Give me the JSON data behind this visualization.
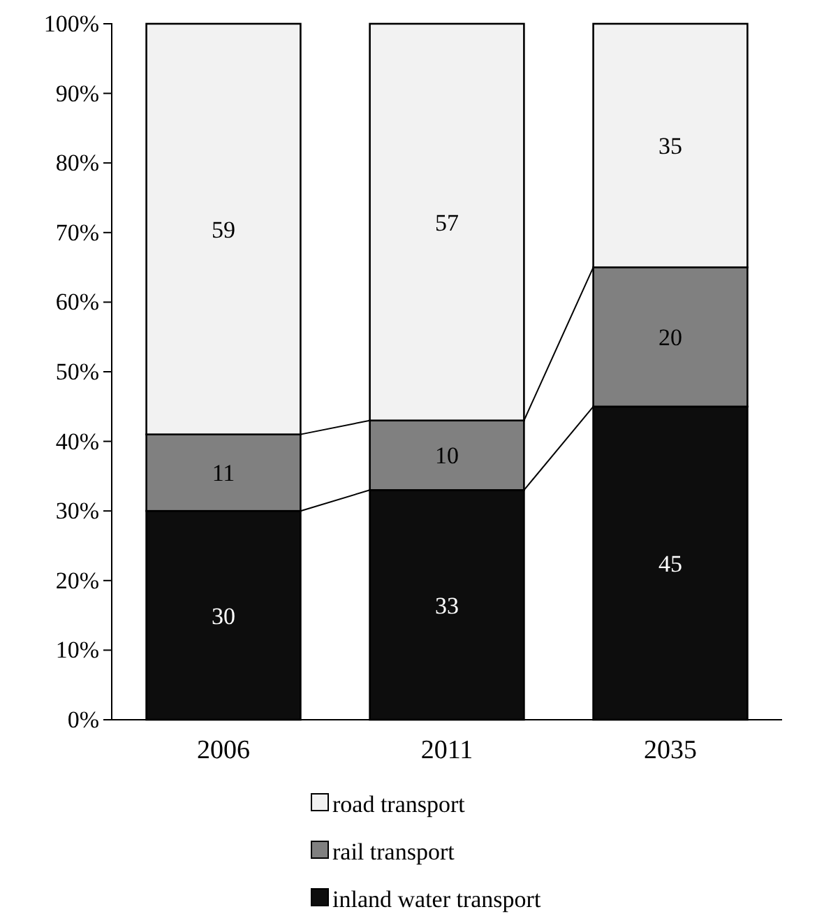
{
  "chart_data": {
    "type": "bar",
    "stacked": true,
    "categories": [
      "2006",
      "2011",
      "2035"
    ],
    "series": [
      {
        "name": "inland water transport",
        "color": "#0d0d0d",
        "values": [
          30,
          33,
          45
        ]
      },
      {
        "name": "rail transport",
        "color": "#808080",
        "values": [
          11,
          10,
          20
        ]
      },
      {
        "name": "road transport",
        "color": "#f2f2f2",
        "values": [
          59,
          57,
          35
        ]
      }
    ],
    "ylim": [
      0,
      100
    ],
    "yticks": [
      {
        "value": 0,
        "label": "0%"
      },
      {
        "value": 10,
        "label": "10%"
      },
      {
        "value": 20,
        "label": "20%"
      },
      {
        "value": 30,
        "label": "30%"
      },
      {
        "value": 40,
        "label": "40%"
      },
      {
        "value": 50,
        "label": "50%"
      },
      {
        "value": 60,
        "label": "60%"
      },
      {
        "value": 70,
        "label": "70%"
      },
      {
        "value": 80,
        "label": "80%"
      },
      {
        "value": 90,
        "label": "90%"
      },
      {
        "value": 100,
        "label": "100%"
      }
    ],
    "data_labels": true,
    "grid": false,
    "legend": "bottom"
  }
}
